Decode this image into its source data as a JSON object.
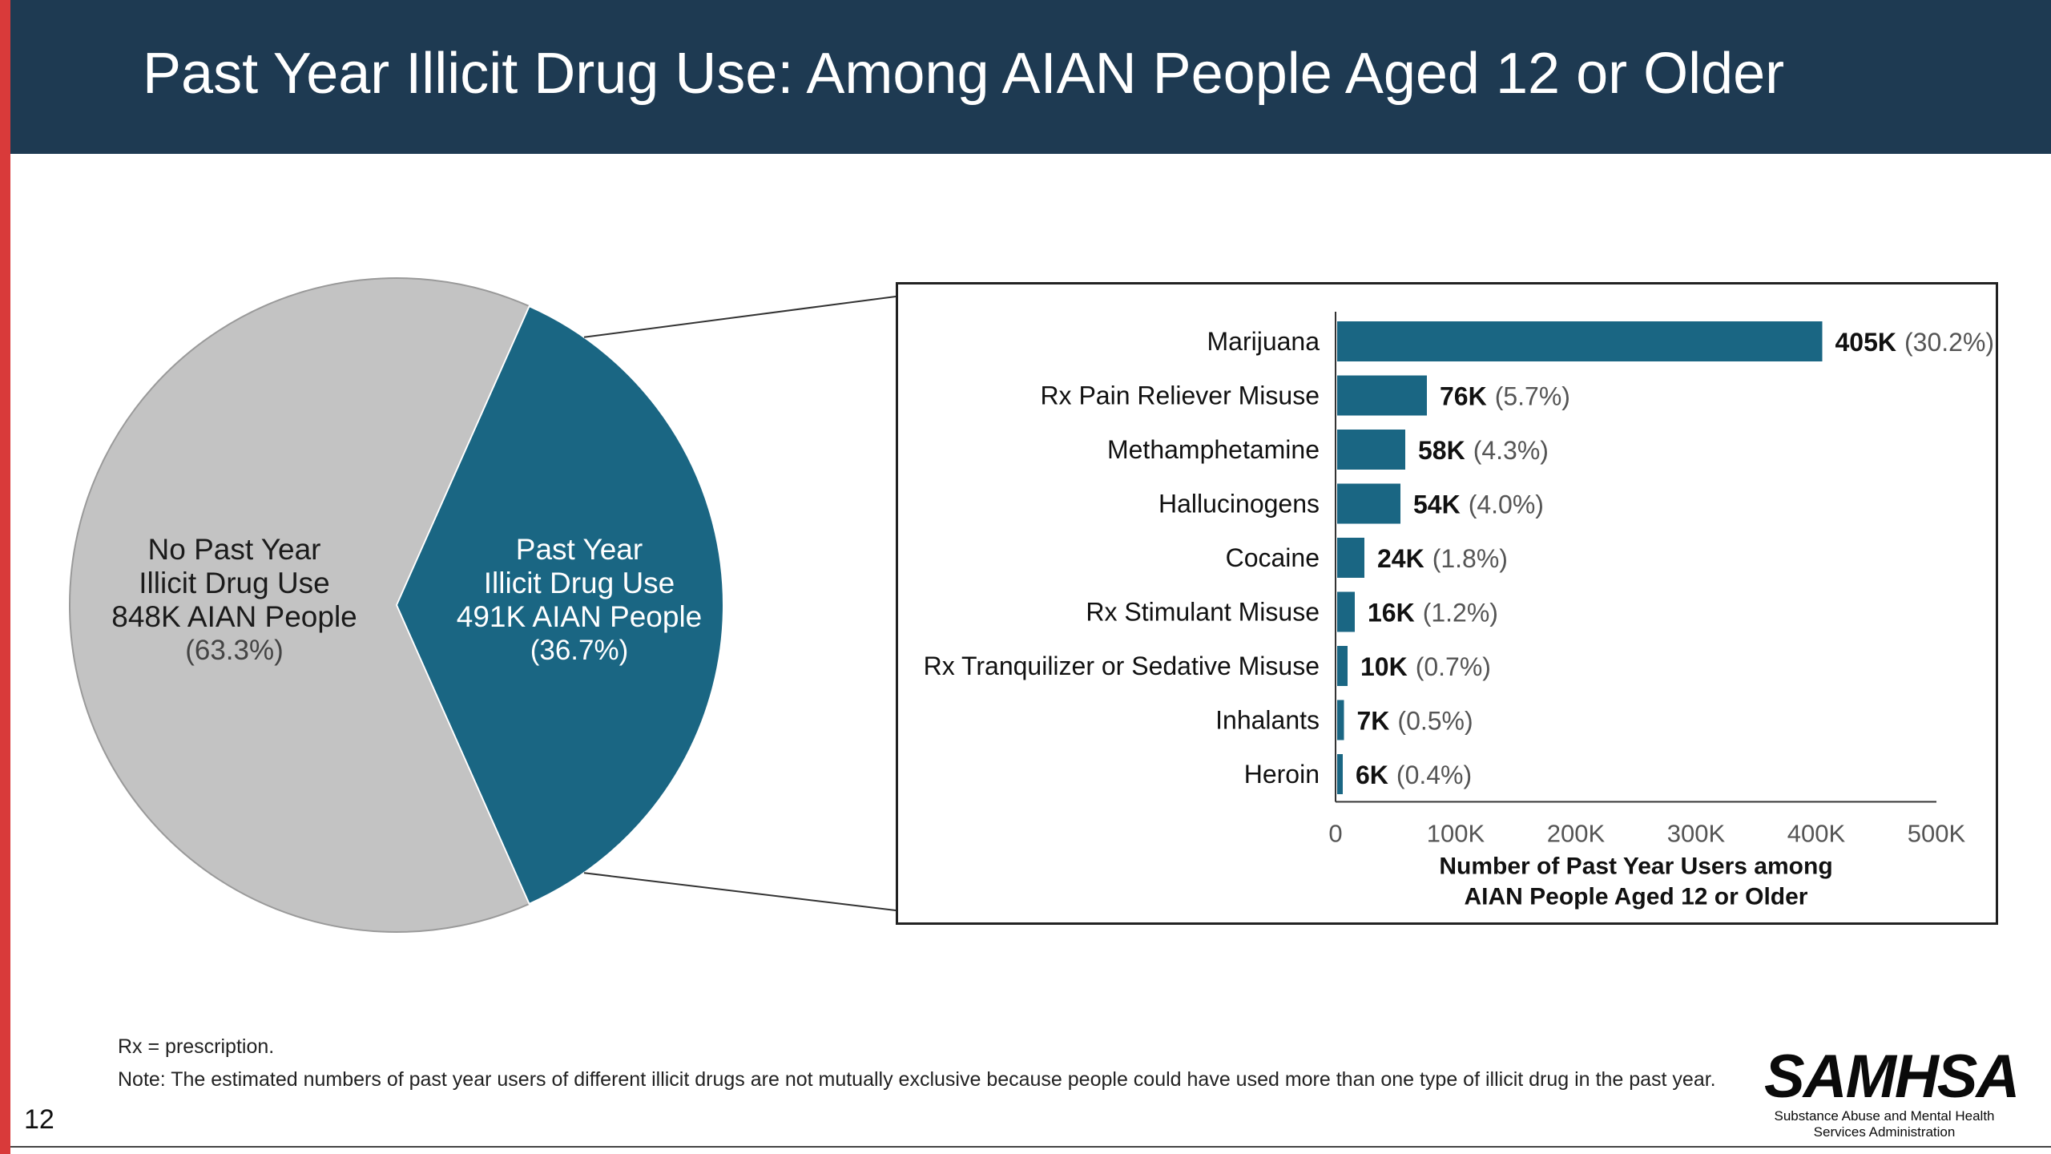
{
  "title": "Past Year Illicit Drug Use: Among AIAN People Aged 12 or Older",
  "page_number": "12",
  "colors": {
    "accent": "#d93a3a",
    "header": "#1e3a52",
    "teal": "#1a6683",
    "gray": "#c3c3c3"
  },
  "pie": {
    "slices": [
      {
        "name": "No Past Year Illicit Drug Use",
        "line1": "No Past Year",
        "line2": "Illicit Drug Use",
        "count": "848K AIAN People",
        "pct": "(63.3%)",
        "value": 63.3
      },
      {
        "name": "Past Year Illicit Drug Use",
        "line1": "Past Year",
        "line2": "Illicit Drug Use",
        "count": "491K AIAN People",
        "pct": "(36.7%)",
        "value": 36.7
      }
    ]
  },
  "chart_data": [
    {
      "type": "pie",
      "categories": [
        "No Past Year Illicit Drug Use",
        "Past Year Illicit Drug Use"
      ],
      "values": [
        63.3,
        36.7
      ]
    },
    {
      "type": "bar",
      "orientation": "horizontal",
      "categories": [
        "Marijuana",
        "Rx Pain Reliever Misuse",
        "Methamphetamine",
        "Hallucinogens",
        "Cocaine",
        "Rx Stimulant Misuse",
        "Rx Tranquilizer or Sedative Misuse",
        "Inhalants",
        "Heroin"
      ],
      "values": [
        405,
        76,
        58,
        54,
        24,
        16,
        10,
        7,
        6
      ],
      "value_labels": [
        "405K",
        "76K",
        "58K",
        "54K",
        "24K",
        "16K",
        "10K",
        "7K",
        "6K"
      ],
      "pct_labels": [
        "(30.2%)",
        "(5.7%)",
        "(4.3%)",
        "(4.0%)",
        "(1.8%)",
        "(1.2%)",
        "(0.7%)",
        "(0.5%)",
        "(0.4%)"
      ],
      "xlim": [
        0,
        500
      ],
      "xticks": [
        "0",
        "100K",
        "200K",
        "300K",
        "400K",
        "500K"
      ],
      "xlabel_line1": "Number of Past Year Users among",
      "xlabel_line2": "AIAN People Aged 12 or Older"
    }
  ],
  "footnotes": {
    "rx": "Rx = prescription.",
    "note": "Note: The estimated numbers of past year users of different illicit drugs are not mutually exclusive because people could have used more than one type of illicit drug in the past year."
  },
  "logo": {
    "word": "SAMHSA",
    "line1": "Substance Abuse and Mental Health",
    "line2": "Services Administration"
  }
}
